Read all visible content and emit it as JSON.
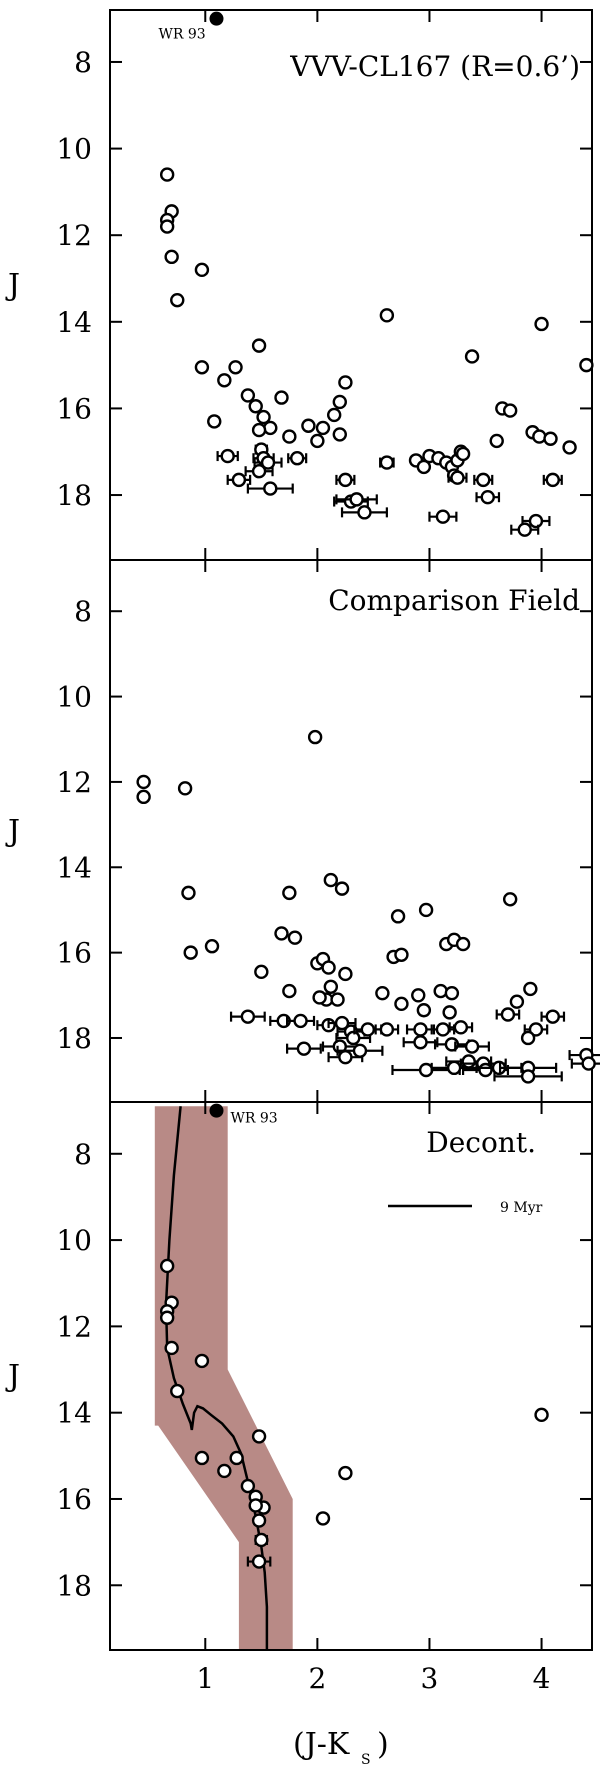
{
  "chart_data": {
    "type": "scatter",
    "xlabel_main": "(J-K",
    "xlabel_sub": "S",
    "xlabel_close": ")",
    "ylabel": "J",
    "xlim": [
      0.15,
      4.45
    ],
    "ylim": [
      6.8,
      19.5
    ],
    "x_ticks": [
      1,
      2,
      3,
      4
    ],
    "y_ticks": [
      8,
      10,
      12,
      14,
      16,
      18
    ],
    "y_inverted": true,
    "colors": {
      "band": "#b88a86",
      "marker_edge": "#000000",
      "marker_fill": "#ffffff"
    },
    "panels": [
      {
        "label": "VVV-CL167 (R=0.6’)",
        "wr": {
          "label": "WR 93",
          "x": 1.1,
          "y": 7.0
        },
        "points": [
          [
            0.66,
            10.6,
            0
          ],
          [
            0.7,
            11.45,
            0
          ],
          [
            0.66,
            11.65,
            0
          ],
          [
            0.66,
            11.8,
            0
          ],
          [
            0.7,
            12.5,
            0
          ],
          [
            0.75,
            13.5,
            0
          ],
          [
            0.97,
            12.8,
            0
          ],
          [
            0.97,
            15.05,
            0
          ],
          [
            1.08,
            16.3,
            0.04
          ],
          [
            1.17,
            15.35,
            0
          ],
          [
            1.27,
            15.05,
            0
          ],
          [
            1.2,
            17.1,
            0.09
          ],
          [
            1.3,
            17.65,
            0.1
          ],
          [
            1.48,
            14.55,
            0
          ],
          [
            1.38,
            15.7,
            0
          ],
          [
            1.45,
            15.95,
            0
          ],
          [
            1.52,
            16.2,
            0
          ],
          [
            1.58,
            16.45,
            0
          ],
          [
            1.48,
            16.5,
            0
          ],
          [
            1.5,
            16.95,
            0.05
          ],
          [
            1.52,
            17.15,
            0.09
          ],
          [
            1.56,
            17.25,
            0.12
          ],
          [
            1.48,
            17.45,
            0.12
          ],
          [
            1.58,
            17.85,
            0.2
          ],
          [
            1.68,
            15.75,
            0
          ],
          [
            1.75,
            16.65,
            0
          ],
          [
            1.82,
            17.15,
            0.08
          ],
          [
            1.92,
            16.4,
            0
          ],
          [
            2.0,
            16.75,
            0
          ],
          [
            2.05,
            16.45,
            0
          ],
          [
            2.15,
            16.15,
            0
          ],
          [
            2.2,
            16.6,
            0
          ],
          [
            2.2,
            15.85,
            0
          ],
          [
            2.25,
            15.4,
            0
          ],
          [
            2.25,
            17.65,
            0.08
          ],
          [
            2.3,
            18.15,
            0.15
          ],
          [
            2.35,
            18.1,
            0.18
          ],
          [
            2.42,
            18.4,
            0.2
          ],
          [
            2.62,
            13.85,
            0
          ],
          [
            2.62,
            17.25,
            0.06
          ],
          [
            2.88,
            17.2,
            0
          ],
          [
            2.95,
            17.35,
            0
          ],
          [
            3.0,
            17.1,
            0
          ],
          [
            3.08,
            17.15,
            0
          ],
          [
            3.15,
            17.25,
            0
          ],
          [
            3.2,
            17.35,
            0
          ],
          [
            3.22,
            17.55,
            0
          ],
          [
            3.25,
            17.2,
            0
          ],
          [
            3.28,
            17.0,
            0
          ],
          [
            3.3,
            17.05,
            0
          ],
          [
            3.12,
            18.5,
            0.12
          ],
          [
            3.25,
            17.6,
            0.08
          ],
          [
            3.38,
            14.8,
            0
          ],
          [
            3.48,
            17.65,
            0.08
          ],
          [
            3.52,
            18.05,
            0.1
          ],
          [
            3.6,
            16.75,
            0
          ],
          [
            3.65,
            16.0,
            0
          ],
          [
            3.72,
            16.05,
            0
          ],
          [
            3.92,
            16.55,
            0
          ],
          [
            3.98,
            16.65,
            0
          ],
          [
            4.0,
            14.05,
            0
          ],
          [
            4.08,
            16.7,
            0
          ],
          [
            4.1,
            17.65,
            0.08
          ],
          [
            4.25,
            16.9,
            0
          ],
          [
            4.4,
            15.0,
            0
          ],
          [
            3.95,
            18.6,
            0.12
          ],
          [
            3.85,
            18.8,
            0.12
          ]
        ]
      },
      {
        "label": "Comparison Field",
        "points": [
          [
            0.45,
            12.0,
            0
          ],
          [
            0.45,
            12.35,
            0
          ],
          [
            0.82,
            12.15,
            0
          ],
          [
            0.85,
            14.6,
            0
          ],
          [
            0.87,
            16.0,
            0
          ],
          [
            1.06,
            15.85,
            0
          ],
          [
            1.5,
            16.45,
            0
          ],
          [
            1.38,
            17.5,
            0.15
          ],
          [
            1.68,
            15.55,
            0
          ],
          [
            1.8,
            15.65,
            0
          ],
          [
            1.75,
            14.6,
            0
          ],
          [
            1.75,
            16.9,
            0
          ],
          [
            1.7,
            17.6,
            0.12
          ],
          [
            1.85,
            17.6,
            0.12
          ],
          [
            1.88,
            18.25,
            0.15
          ],
          [
            1.98,
            10.95,
            0
          ],
          [
            2.0,
            16.25,
            0
          ],
          [
            2.05,
            16.15,
            0
          ],
          [
            2.1,
            16.35,
            0
          ],
          [
            2.08,
            17.1,
            0
          ],
          [
            2.02,
            17.05,
            0
          ],
          [
            2.12,
            14.3,
            0
          ],
          [
            2.22,
            14.5,
            0
          ],
          [
            2.12,
            16.8,
            0
          ],
          [
            2.18,
            17.1,
            0
          ],
          [
            2.25,
            16.5,
            0
          ],
          [
            2.1,
            17.7,
            0.1
          ],
          [
            2.22,
            17.65,
            0.12
          ],
          [
            2.2,
            18.2,
            0.15
          ],
          [
            2.3,
            17.85,
            0.12
          ],
          [
            2.25,
            18.45,
            0.15
          ],
          [
            2.38,
            18.3,
            0.2
          ],
          [
            2.32,
            18.0,
            0.15
          ],
          [
            2.45,
            17.8,
            0.12
          ],
          [
            2.62,
            17.8,
            0.1
          ],
          [
            2.58,
            16.95,
            0
          ],
          [
            2.68,
            16.1,
            0
          ],
          [
            2.72,
            15.15,
            0
          ],
          [
            2.75,
            16.05,
            0
          ],
          [
            2.75,
            17.2,
            0
          ],
          [
            2.9,
            17.0,
            0
          ],
          [
            2.92,
            17.8,
            0.12
          ],
          [
            2.97,
            15.0,
            0
          ],
          [
            2.95,
            17.35,
            0
          ],
          [
            2.97,
            18.75,
            0.3
          ],
          [
            2.92,
            18.1,
            0.15
          ],
          [
            3.1,
            16.9,
            0
          ],
          [
            3.15,
            15.8,
            0
          ],
          [
            3.22,
            15.7,
            0
          ],
          [
            3.2,
            16.95,
            0
          ],
          [
            3.18,
            17.4,
            0
          ],
          [
            3.3,
            15.8,
            0
          ],
          [
            3.12,
            17.8,
            0.1
          ],
          [
            3.2,
            18.15,
            0.15
          ],
          [
            3.22,
            18.7,
            0.2
          ],
          [
            3.28,
            17.75,
            0.1
          ],
          [
            3.38,
            18.2,
            0.15
          ],
          [
            3.35,
            18.55,
            0.2
          ],
          [
            3.48,
            18.6,
            0.2
          ],
          [
            3.5,
            18.75,
            0.2
          ],
          [
            3.62,
            18.7,
            0.2
          ],
          [
            3.72,
            14.75,
            0
          ],
          [
            3.7,
            17.45,
            0.1
          ],
          [
            3.78,
            17.15,
            0
          ],
          [
            3.9,
            16.85,
            0
          ],
          [
            3.88,
            18.7,
            0.25
          ],
          [
            3.88,
            18.9,
            0.3
          ],
          [
            3.95,
            17.8,
            0.1
          ],
          [
            4.1,
            17.5,
            0.1
          ],
          [
            4.4,
            18.4,
            0.15
          ],
          [
            4.42,
            18.6,
            0.15
          ],
          [
            3.88,
            18.0,
            0
          ]
        ]
      },
      {
        "label": "Decont.",
        "legend_label": "9 Myr",
        "wr": {
          "label": "WR 93",
          "x": 1.1,
          "y": 7.0
        },
        "band": [
          [
            0.55,
            6.9
          ],
          [
            1.2,
            6.9
          ],
          [
            1.2,
            13.0
          ],
          [
            1.78,
            16.0
          ],
          [
            1.78,
            19.6
          ],
          [
            1.3,
            19.6
          ],
          [
            1.3,
            17.0
          ],
          [
            0.58,
            14.3
          ],
          [
            0.55,
            14.3
          ]
        ],
        "isochrone": [
          [
            0.78,
            6.9
          ],
          [
            0.72,
            8.5
          ],
          [
            0.68,
            10.0
          ],
          [
            0.65,
            11.5
          ],
          [
            0.66,
            12.5
          ],
          [
            0.72,
            13.2
          ],
          [
            0.8,
            13.8
          ],
          [
            0.87,
            14.25
          ],
          [
            0.88,
            14.4
          ],
          [
            0.9,
            14.0
          ],
          [
            0.93,
            13.85
          ],
          [
            0.98,
            13.9
          ],
          [
            1.05,
            14.05
          ],
          [
            1.15,
            14.25
          ],
          [
            1.25,
            14.55
          ],
          [
            1.32,
            14.95
          ],
          [
            1.38,
            15.6
          ],
          [
            1.45,
            16.4
          ],
          [
            1.5,
            17.1
          ],
          [
            1.53,
            17.7
          ],
          [
            1.55,
            18.5
          ],
          [
            1.55,
            19.5
          ]
        ],
        "points": [
          [
            0.66,
            10.6,
            0
          ],
          [
            0.7,
            11.45,
            0
          ],
          [
            0.66,
            11.65,
            0
          ],
          [
            0.66,
            11.8,
            0
          ],
          [
            0.7,
            12.5,
            0
          ],
          [
            0.75,
            13.5,
            0
          ],
          [
            0.97,
            12.8,
            0
          ],
          [
            0.97,
            15.05,
            0
          ],
          [
            1.17,
            15.35,
            0
          ],
          [
            1.28,
            15.05,
            0
          ],
          [
            1.48,
            14.55,
            0
          ],
          [
            1.38,
            15.7,
            0
          ],
          [
            1.45,
            15.95,
            0
          ],
          [
            1.52,
            16.2,
            0
          ],
          [
            1.45,
            16.15,
            0
          ],
          [
            1.48,
            16.5,
            0
          ],
          [
            1.5,
            16.95,
            0.05
          ],
          [
            1.48,
            17.45,
            0.1
          ],
          [
            2.05,
            16.45,
            0
          ],
          [
            2.25,
            15.4,
            0
          ],
          [
            4.0,
            14.05,
            0
          ]
        ]
      }
    ]
  }
}
